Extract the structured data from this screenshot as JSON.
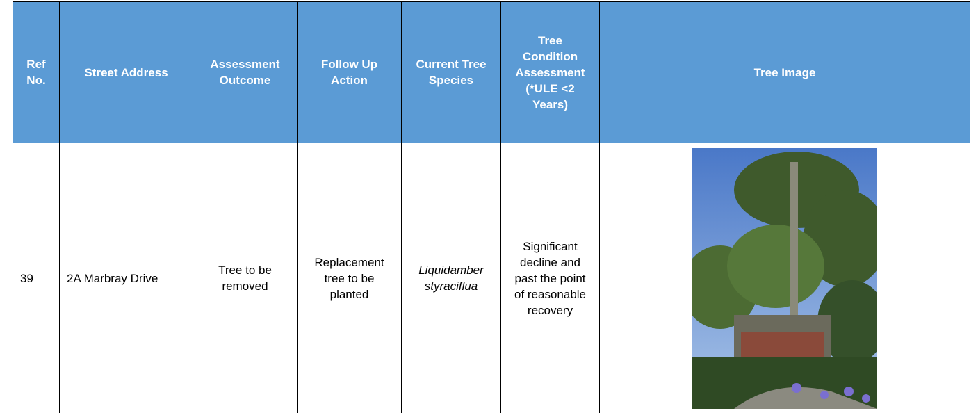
{
  "table": {
    "header": [
      "Ref No.",
      "Street Address",
      "Assessment Outcome",
      "Follow Up Action",
      "Current Tree Species",
      "Tree Condition Assessment (*ULE <2 Years)",
      "Tree Image"
    ],
    "rows": [
      [
        "39",
        "2A Marbray Drive",
        "Tree to be removed",
        "Replacement tree to be planted",
        "Liquidamber styraciflua",
        "Significant decline and past the point of reasonable recovery",
        ""
      ]
    ]
  }
}
